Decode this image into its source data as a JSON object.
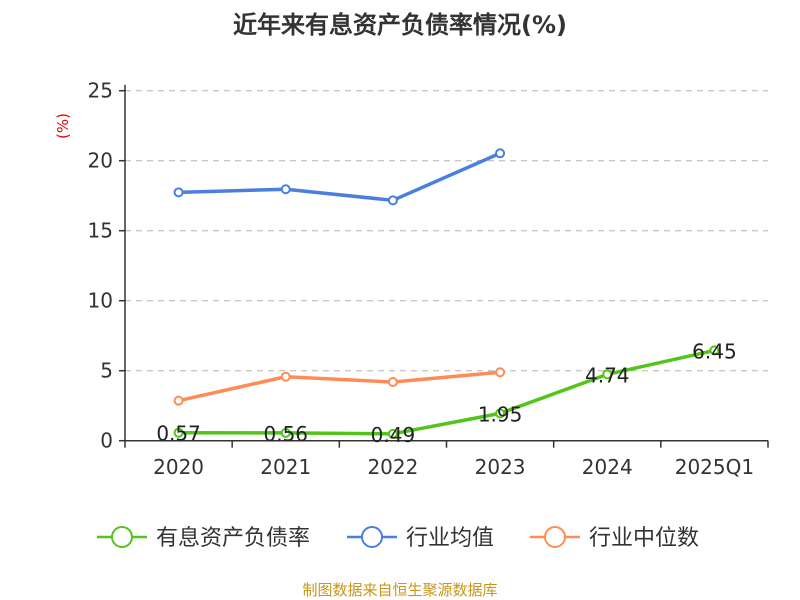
{
  "chart_data": {
    "type": "line",
    "title": "近年来有息资产负债率情况(%)",
    "ylabel": "(%)",
    "xlabel": "",
    "ylim": [
      0,
      25
    ],
    "yticks": [
      "0",
      "5",
      "10",
      "15",
      "20",
      "25"
    ],
    "grid": true,
    "legend_position": "bottom",
    "categories": [
      "2020",
      "2021",
      "2022",
      "2023",
      "2024",
      "2025Q1"
    ],
    "series": [
      {
        "name": "有息资产负债率",
        "color": "#52c41a",
        "values": [
          0.57,
          0.56,
          0.49,
          1.95,
          4.74,
          6.45
        ],
        "labels": [
          "0.57",
          "0.56",
          "0.49",
          "1.95",
          "4.74",
          "6.45"
        ]
      },
      {
        "name": "行业均值",
        "color": "#4a7fe0",
        "values": [
          17.74,
          17.96,
          17.17,
          20.53,
          null,
          null
        ]
      },
      {
        "name": "行业中位数",
        "color": "#ff8c55",
        "values": [
          2.86,
          4.57,
          4.19,
          4.89,
          null,
          null
        ]
      }
    ],
    "source": "制图数据来自恒生聚源数据库"
  }
}
